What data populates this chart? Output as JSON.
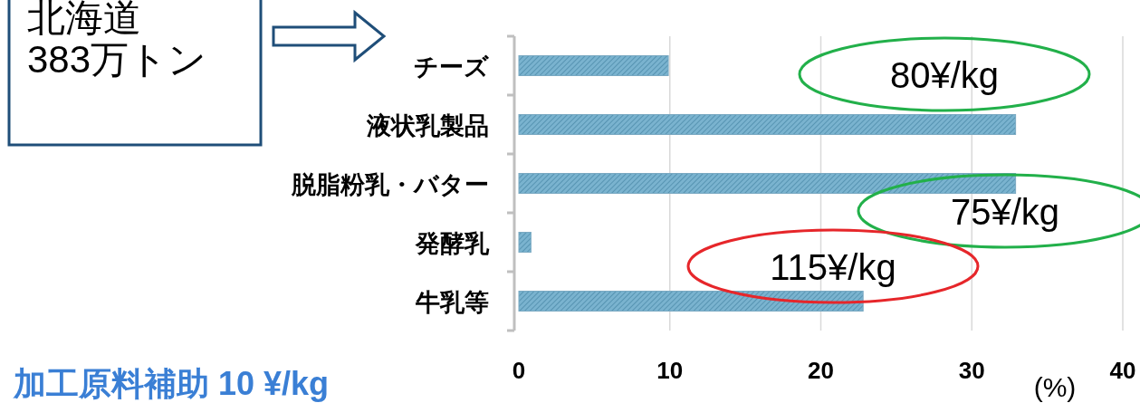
{
  "chart_data": {
    "type": "bar",
    "orientation": "horizontal",
    "xlabel": "(%)",
    "categories": [
      "チーズ",
      "液状乳製品",
      "脱脂粉乳・バター",
      "発酵乳",
      "牛乳等"
    ],
    "values": [
      9.9,
      32.9,
      32.9,
      0.8,
      22.8
    ],
    "color": "#7ab3cf",
    "xlim": [
      0,
      40
    ],
    "xticks": [
      0,
      10,
      20,
      30,
      40
    ],
    "grid": "x",
    "annotations": [
      "北海道\n383万トン",
      "80¥/kg",
      "75¥/kg",
      "115¥/kg",
      "加工原料補助 10 ¥/kg"
    ]
  }
}
